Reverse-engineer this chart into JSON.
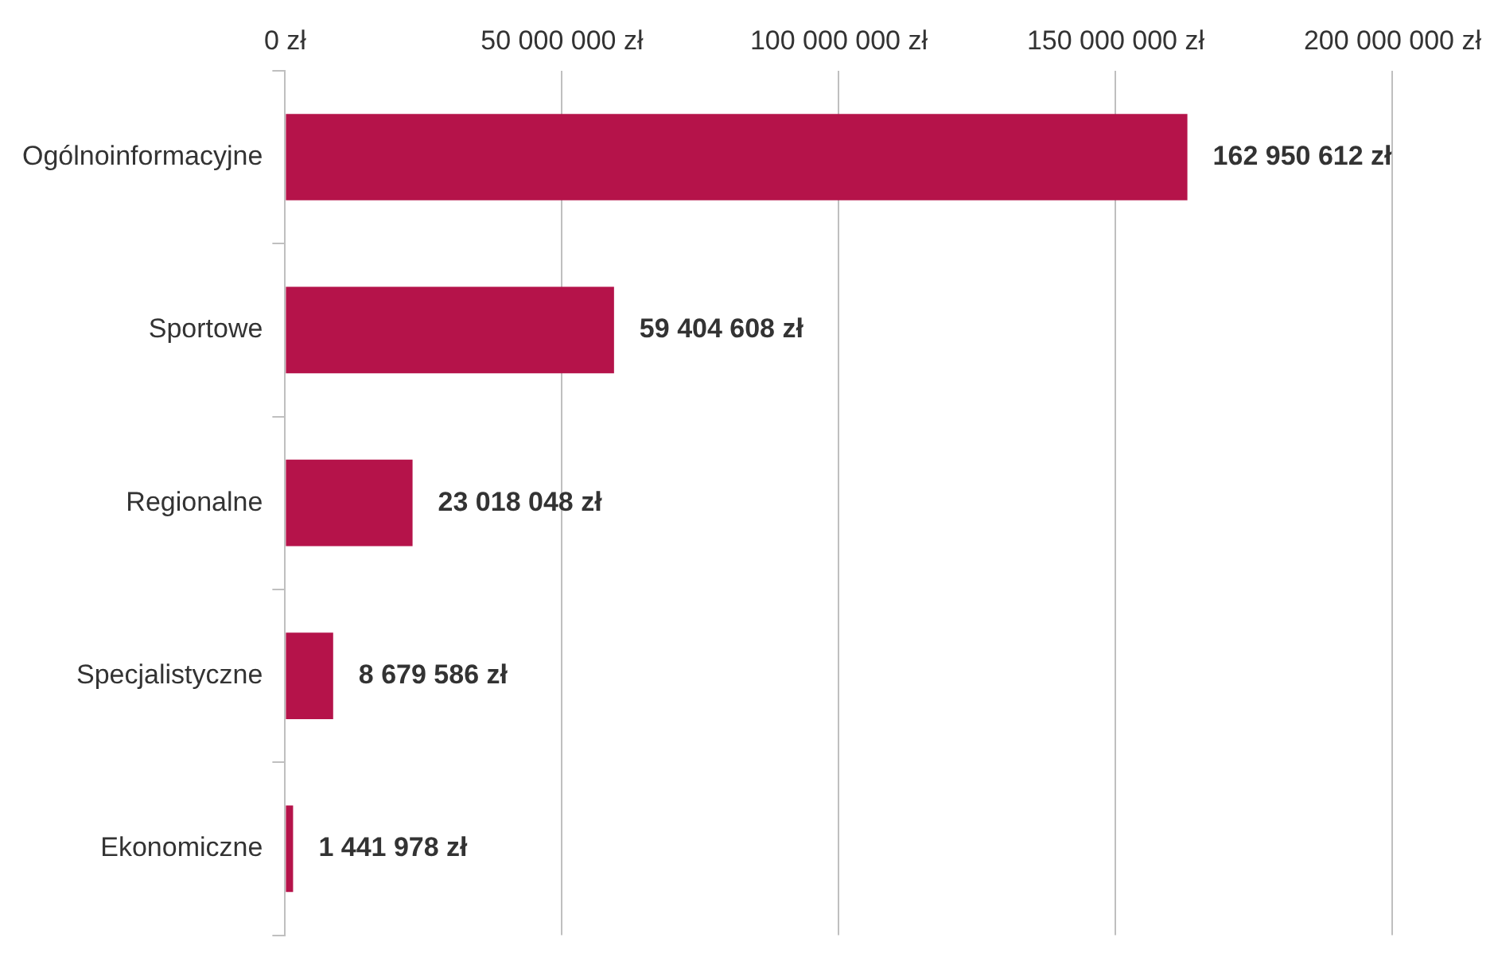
{
  "chart_data": {
    "type": "bar",
    "orientation": "horizontal",
    "categories": [
      "Ogólnoinformacyjne",
      "Sportowe",
      "Regionalne",
      "Specjalistyczne",
      "Ekonomiczne"
    ],
    "values": [
      162950612,
      59404608,
      23018048,
      8679586,
      1441978
    ],
    "value_labels": [
      "162 950 612 zł",
      "59 404 608 zł",
      "23 018 048 zł",
      "8 679 586 zł",
      "1 441 978 zł"
    ],
    "color": "#b5134a",
    "xlim": [
      0,
      200000000
    ],
    "xticks": [
      {
        "value": 0,
        "label": "0 zł"
      },
      {
        "value": 50000000,
        "label": "50 000 000 zł"
      },
      {
        "value": 100000000,
        "label": "100 000 000 zł"
      },
      {
        "value": 150000000,
        "label": "150 000 000 zł"
      },
      {
        "value": 200000000,
        "label": "200 000 000 zł"
      }
    ],
    "grid": "x",
    "legend": false
  }
}
